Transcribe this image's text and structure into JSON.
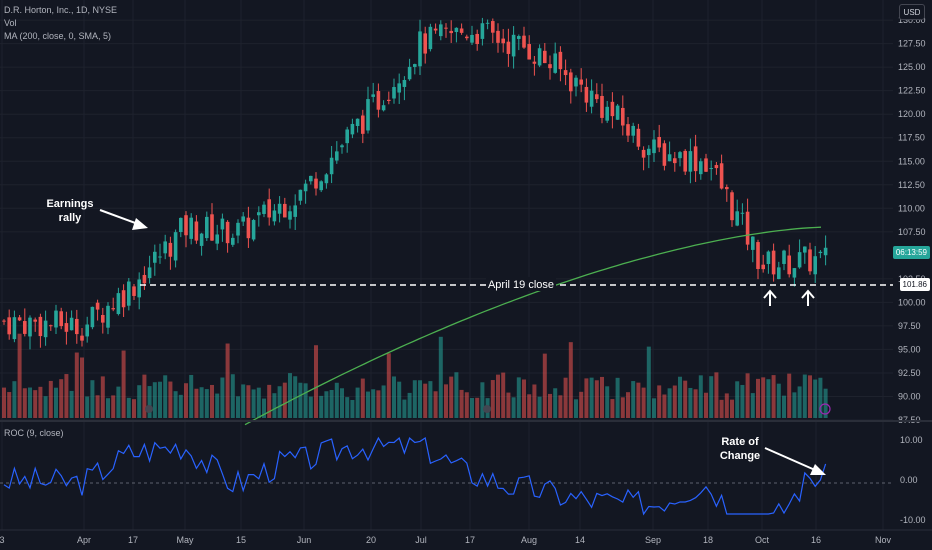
{
  "header": {
    "symbol_line": "D.R. Horton, Inc., 1D, NYSE",
    "vol_label": "Vol",
    "ma_label": "MA (200, close, 0, SMA, 5)",
    "roc_label": "ROC (9, close)",
    "currency_button": "USD"
  },
  "tags": {
    "countdown": "06:13:59",
    "level": "101.86"
  },
  "annotations": {
    "earnings": [
      "Earnings",
      "rally"
    ],
    "april_close": "April 19 close",
    "roc": [
      "Rate of",
      "Change"
    ]
  },
  "colors": {
    "background": "#131722",
    "up": "#26a69a",
    "down": "#ef5350",
    "ma": "#4caf50",
    "roc": "#2962ff",
    "grid": "#1e222d",
    "text": "#b2b5be"
  },
  "chart_data": {
    "type": "candlestick",
    "timeframe": "1D",
    "x_tick_labels": [
      "3",
      "Apr",
      "17",
      "May",
      "15",
      "Jun",
      "20",
      "Jul",
      "17",
      "Aug",
      "14",
      "Sep",
      "18",
      "Oct",
      "16",
      "Nov"
    ],
    "price_axis": {
      "ticks": [
        "130.00",
        "127.50",
        "125.00",
        "122.50",
        "120.00",
        "117.50",
        "115.00",
        "112.50",
        "110.00",
        "107.50",
        "102.50",
        "100.00",
        "97.50",
        "95.00",
        "92.50",
        "90.00",
        "87.50"
      ],
      "range": [
        87.5,
        131.5
      ]
    },
    "roc_axis": {
      "ticks": [
        "10.00",
        "0.00",
        "-10.00"
      ],
      "range": [
        -12,
        12
      ]
    },
    "price_path": [
      [
        "3",
        98.0
      ],
      [
        "Apr",
        97.5
      ],
      [
        "17",
        101.9
      ],
      [
        "May",
        108.0
      ],
      [
        "15",
        107.5
      ],
      [
        "Jun",
        112.0
      ],
      [
        "20",
        120.5
      ],
      [
        "Jul",
        127.5
      ],
      [
        "17",
        129.0
      ],
      [
        "Aug",
        127.0
      ],
      [
        "14",
        123.0
      ],
      [
        "Sep",
        116.0
      ],
      [
        "18",
        115.0
      ],
      [
        "Oct",
        104.0
      ],
      [
        "16",
        104.5
      ]
    ],
    "horizontal_level": 101.86,
    "ma_200": {
      "start": 87.0,
      "end": 108.0
    },
    "roc_extremes": {
      "max": 10.5,
      "min": -8.5
    }
  }
}
